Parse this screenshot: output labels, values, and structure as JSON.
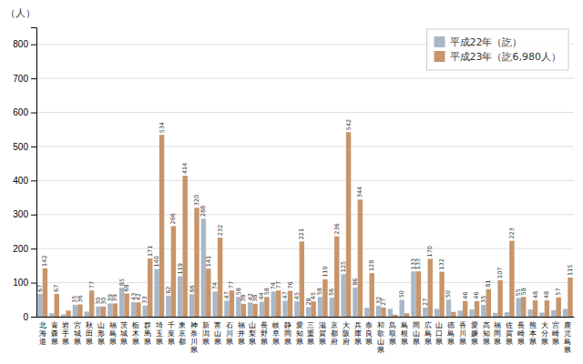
{
  "chart_data": {
    "type": "bar",
    "categories": [
      "北海道",
      "青森県",
      "岩手県",
      "宮城県",
      "秋田県",
      "山形県",
      "福島県",
      "茨城県",
      "栃木県",
      "群馬県",
      "埼玉県",
      "千葉県",
      "東京都",
      "神奈川県",
      "新潟県",
      "富山県",
      "石川県",
      "福井県",
      "山梨県",
      "長野県",
      "岐阜県",
      "静岡県",
      "愛知県",
      "三重県",
      "滋賀県",
      "京都府",
      "大阪府",
      "兵庫県",
      "奈良県",
      "和歌山県",
      "鳥取県",
      "島根県",
      "岡山県",
      "広島県",
      "山口県",
      "徳島県",
      "香川県",
      "愛媛県",
      "高知県",
      "福岡県",
      "佐賀県",
      "長崎県",
      "熊本県",
      "大分県",
      "宮崎県",
      "鹿児島県"
    ],
    "series": [
      {
        "name": "平成22年（訖）",
        "color": "#a8b8c8",
        "values": [
          67,
          10,
          7,
          35,
          15,
          30,
          39,
          85,
          43,
          33,
          140,
          62,
          119,
          66,
          288,
          74,
          47,
          58,
          42,
          44,
          74,
          47,
          45,
          28,
          58,
          56,
          125,
          86,
          26,
          32,
          23,
          50,
          133,
          27,
          23,
          50,
          18,
          21,
          35,
          11,
          13,
          55,
          21,
          12,
          19,
          23
        ],
        "value_labels": [
          "67",
          null,
          null,
          "35",
          null,
          "30",
          "39",
          "85",
          "43",
          "33",
          "140",
          "62",
          "119",
          "66",
          "288",
          "74",
          "47",
          "58",
          "42",
          "44",
          "74",
          "47",
          "45",
          "28",
          "58",
          "56",
          "125",
          "86",
          null,
          "32",
          null,
          "50",
          "133",
          "27",
          null,
          "50",
          null,
          null,
          "35",
          null,
          null,
          "55",
          null,
          null,
          null,
          null
        ]
      },
      {
        "name": "平成23年（訖6,980人）",
        "color": "#c8956b",
        "values": [
          142,
          67,
          18,
          36,
          77,
          30,
          39,
          68,
          42,
          171,
          534,
          266,
          414,
          320,
          141,
          232,
          77,
          38,
          38,
          58,
          77,
          76,
          221,
          45,
          110,
          236,
          542,
          344,
          128,
          27,
          6,
          10,
          133,
          170,
          132,
          14,
          46,
          46,
          81,
          107,
          223,
          58,
          48,
          48,
          57,
          115
        ],
        "value_labels": [
          "142",
          "67",
          null,
          "36",
          "77",
          "30",
          "39",
          "68",
          "42",
          "171",
          "534",
          "266",
          "414",
          "320",
          "141",
          "232",
          "77",
          "38",
          "38",
          "58",
          "77",
          "76",
          "221",
          "45",
          "110",
          "236",
          "542",
          "344",
          "128",
          "27",
          null,
          null,
          "133",
          "170",
          "132",
          null,
          "46",
          "46",
          "81",
          "107",
          "223",
          "58",
          "48",
          "48",
          "57",
          "115"
        ]
      }
    ],
    "ylim": [
      0,
      850
    ],
    "yticks": [
      0,
      100,
      200,
      300,
      400,
      500,
      600,
      700,
      800
    ],
    "ylabel": "（人）",
    "grid": true,
    "legend": "upper right",
    "data_labels": true
  }
}
